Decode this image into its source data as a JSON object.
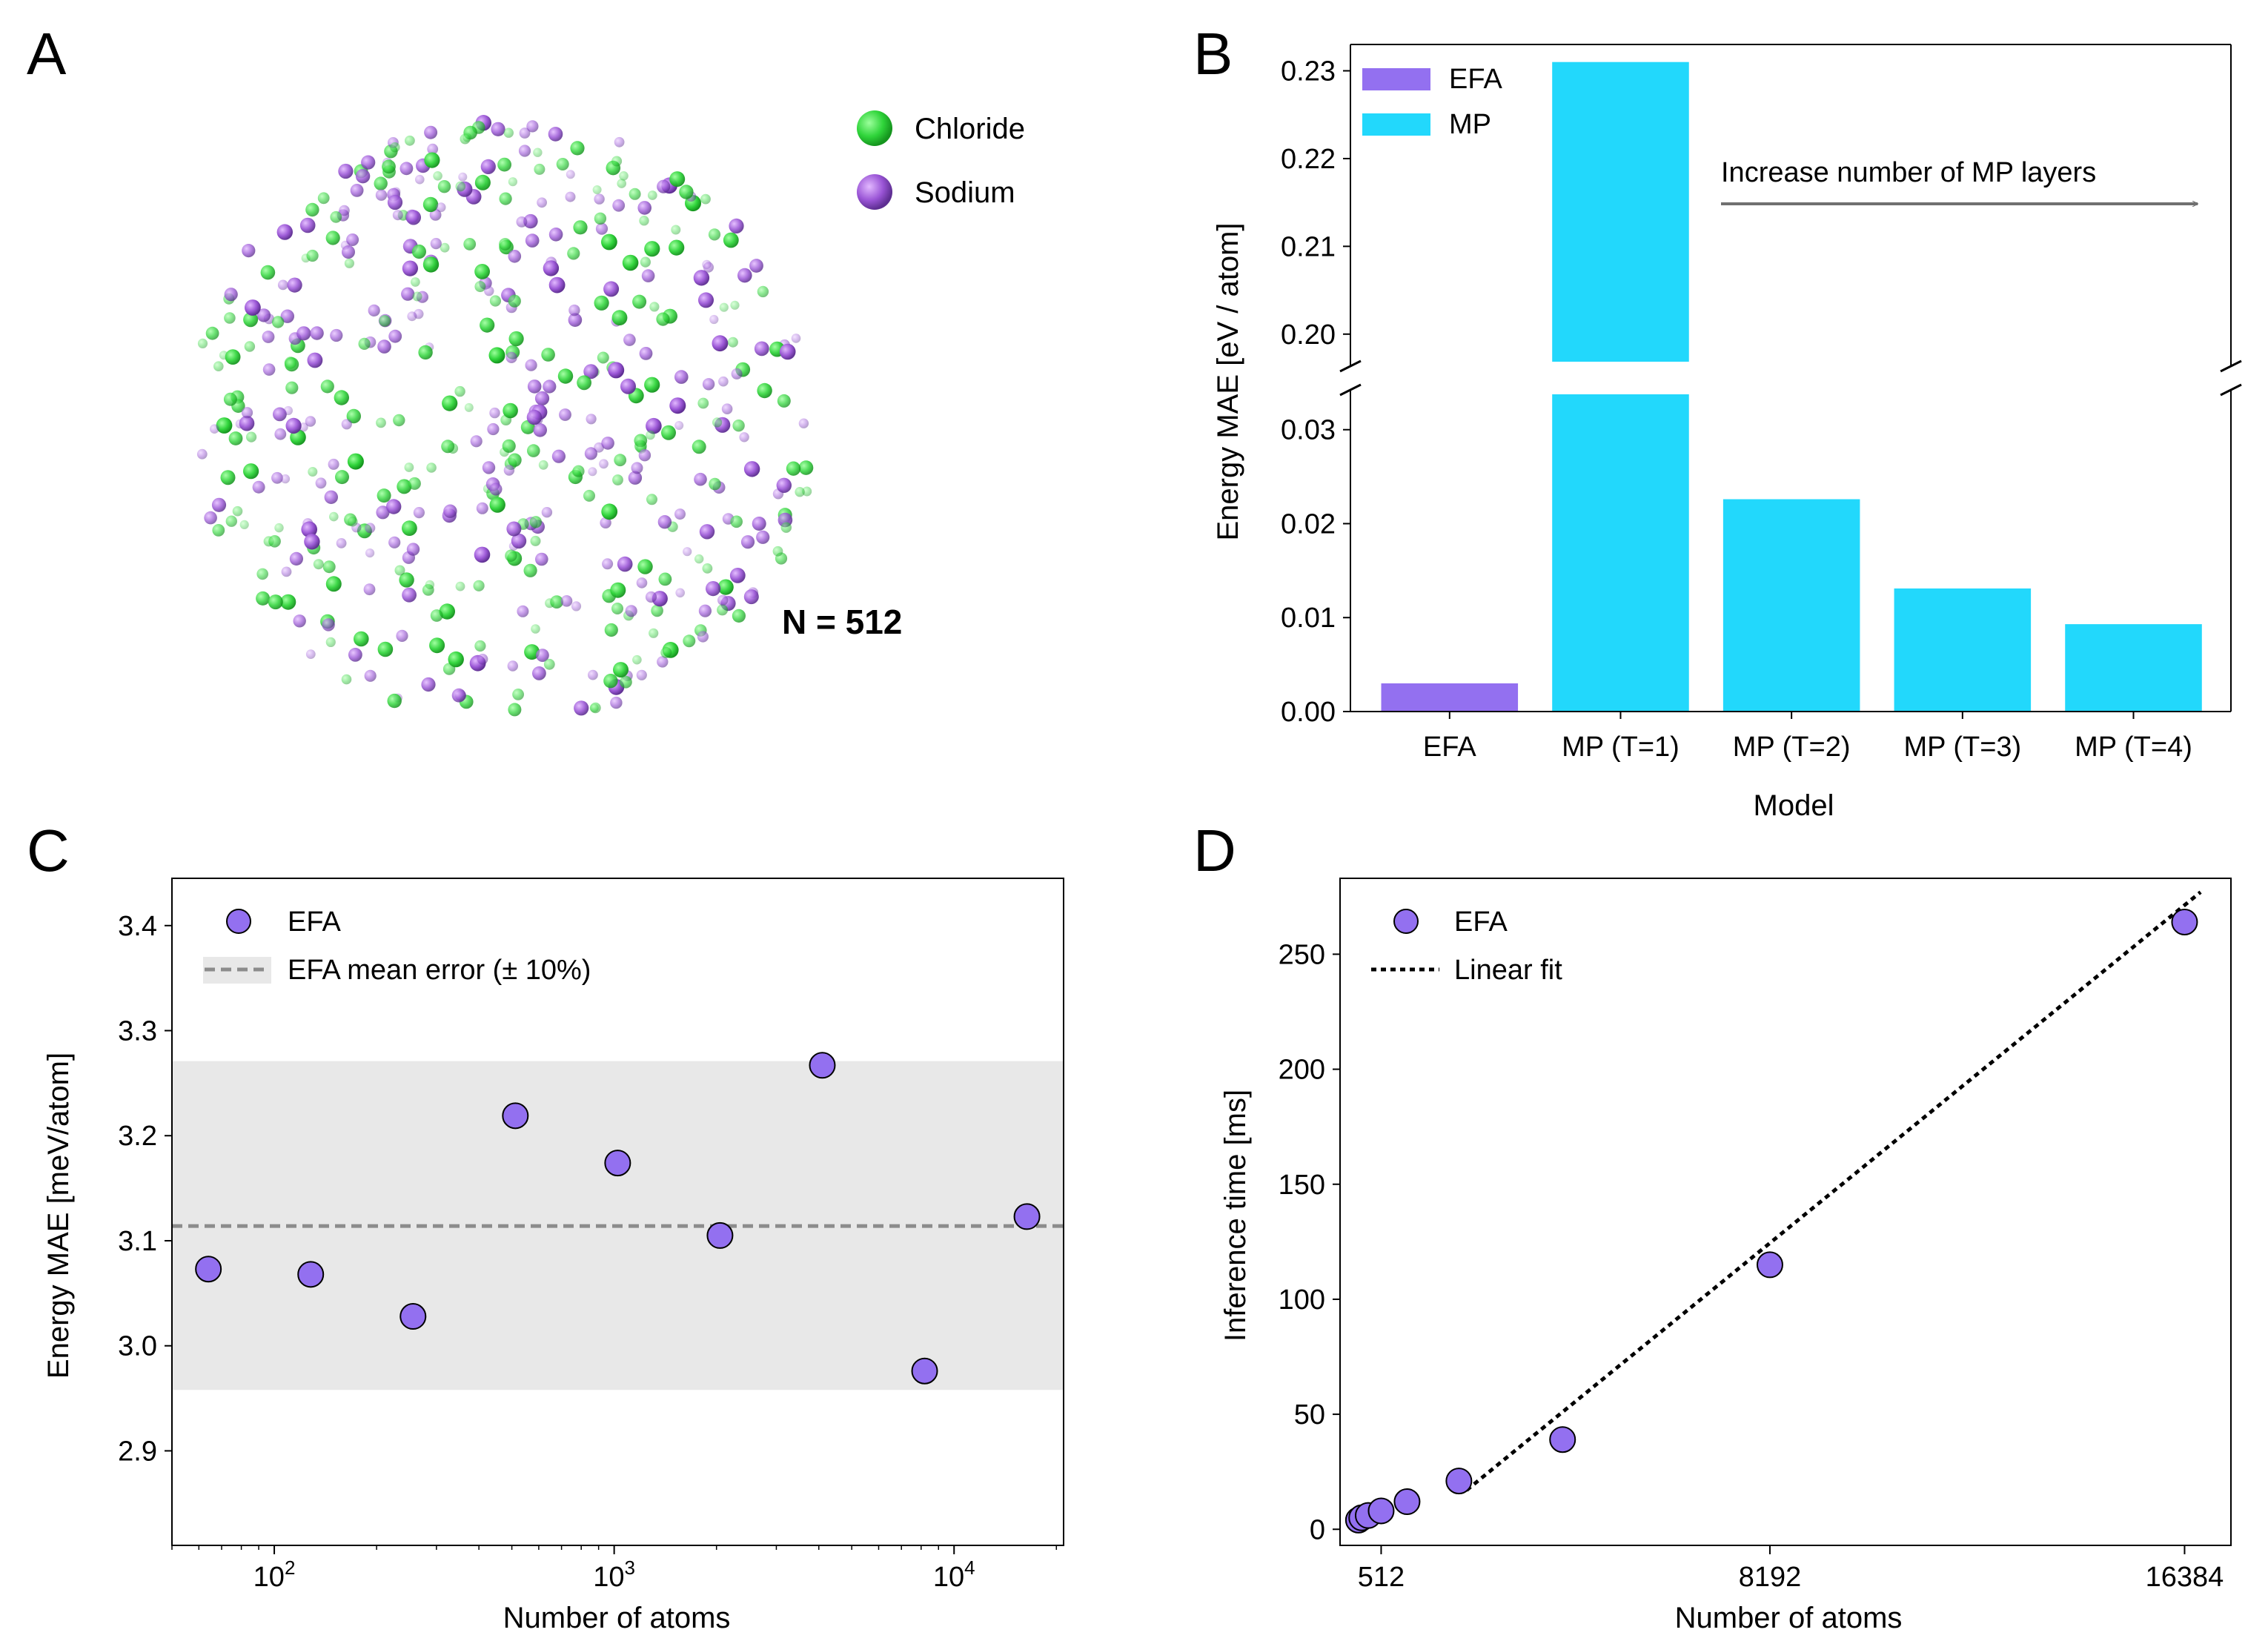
{
  "colors": {
    "efa": "#9370F0",
    "mp": "#22D8FC",
    "chloride": "#2FD43A",
    "sodium": "#9A55D6",
    "band": "#E8E8E8",
    "dashed": "#8C8C8C",
    "arrow": "#707070"
  },
  "panel_a": {
    "letter": "A",
    "legend": [
      "Chloride",
      "Sodium"
    ],
    "label": "N = 512"
  },
  "chart_data": [
    {
      "panel": "B",
      "letter": "B",
      "type": "bar",
      "categories": [
        "EFA",
        "MP (T=1)",
        "MP (T=2)",
        "MP (T=3)",
        "MP (T=4)"
      ],
      "values": [
        0.003,
        0.231,
        0.0226,
        0.0131,
        0.0093
      ],
      "series_of_bar": [
        "EFA",
        "MP",
        "MP",
        "MP",
        "MP"
      ],
      "legend": [
        "EFA",
        "MP"
      ],
      "xlabel": "Model",
      "ylabel": "Energy MAE [eV / atom]",
      "broken_axis": {
        "upper_ylim": [
          0.195,
          0.233
        ],
        "lower_ylim": [
          0,
          0.0355
        ],
        "upper_ticks": [
          "0.20",
          "0.21",
          "0.22",
          "0.23"
        ],
        "lower_ticks": [
          "0.00",
          "0.01",
          "0.02",
          "0.03"
        ]
      },
      "annotation": "Increase number of MP layers"
    },
    {
      "panel": "C",
      "letter": "C",
      "type": "scatter",
      "x": [
        64,
        128,
        256,
        512,
        1024,
        2048,
        4096,
        8192,
        16384
      ],
      "y": [
        3.073,
        3.068,
        3.028,
        3.219,
        3.174,
        3.105,
        3.267,
        2.976,
        3.123
      ],
      "xscale": "log",
      "xlim": [
        50,
        21000
      ],
      "ylim": [
        2.81,
        3.445
      ],
      "yticks": [
        "2.9",
        "3.0",
        "3.1",
        "3.2",
        "3.3",
        "3.4"
      ],
      "xtick_bases": [
        "10",
        "10",
        "10"
      ],
      "xtick_exponents": [
        "2",
        "3",
        "4"
      ],
      "mean": 3.114,
      "band": [
        2.958,
        3.271
      ],
      "legend": [
        "EFA",
        "EFA mean error (± 10%)"
      ],
      "xlabel": "Number of atoms",
      "ylabel": "Energy MAE [meV/atom]"
    },
    {
      "panel": "D",
      "letter": "D",
      "type": "scatter",
      "x": [
        64,
        128,
        256,
        512,
        1024,
        2048,
        4096,
        8192,
        16384
      ],
      "y": [
        4,
        5,
        6,
        8,
        12,
        21,
        39,
        115,
        264
      ],
      "xlim": [
        -300,
        17300
      ],
      "ylim": [
        -7,
        283
      ],
      "xticks": [
        "512",
        "8192",
        "16384"
      ],
      "yticks": [
        "0",
        "50",
        "100",
        "150",
        "200",
        "250"
      ],
      "fit": {
        "x": [
          2200,
          16700
        ],
        "y": [
          17,
          277
        ]
      },
      "legend": [
        "EFA",
        "Linear fit"
      ],
      "xlabel": "Number of atoms",
      "ylabel": "Inference time [ms]"
    }
  ]
}
